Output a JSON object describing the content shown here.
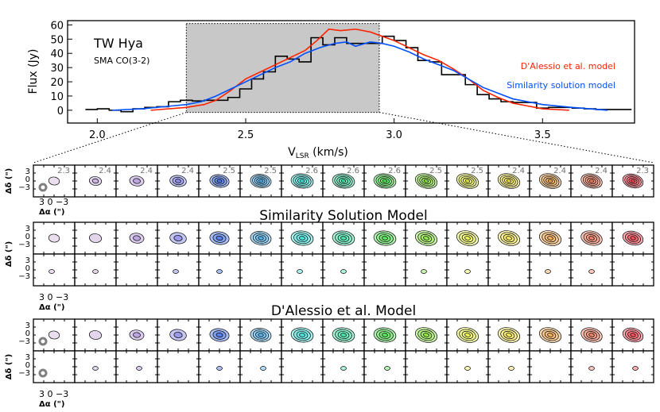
{
  "chart_data": [
    {
      "type": "line",
      "title": "TW Hya",
      "subtitle": "SMA CO(3-2)",
      "xlabel": "V",
      "xlabel_sub": "LSR",
      "xlabel_unit": " (km/s)",
      "ylabel": "Flux (Jy)",
      "xlim": [
        1.9,
        3.81
      ],
      "ylim": [
        -9,
        63
      ],
      "xticks": [
        "2.0",
        "2.5",
        "3.0",
        "3.5"
      ],
      "xtick_values": [
        2.0,
        2.5,
        3.0,
        3.5
      ],
      "yticks": [
        "0",
        "10",
        "20",
        "30",
        "40",
        "50",
        "60"
      ],
      "ytick_values": [
        0,
        10,
        20,
        30,
        40,
        50,
        60
      ],
      "highlight_range": {
        "x": [
          2.3,
          2.95
        ],
        "y": [
          -1.5,
          61
        ],
        "color": "#c8c8c8"
      },
      "legend_placement": "top-right",
      "observed": {
        "style": "step",
        "color": "#000000",
        "x": [
          1.96,
          2.0,
          2.04,
          2.08,
          2.12,
          2.16,
          2.2,
          2.24,
          2.28,
          2.32,
          2.36,
          2.4,
          2.44,
          2.48,
          2.52,
          2.56,
          2.6,
          2.64,
          2.68,
          2.72,
          2.76,
          2.8,
          2.84,
          2.88,
          2.92,
          2.96,
          3.0,
          3.04,
          3.08,
          3.12,
          3.16,
          3.2,
          3.24,
          3.28,
          3.32,
          3.36,
          3.4,
          3.44,
          3.48,
          3.52,
          3.56,
          3.6,
          3.64,
          3.68,
          3.72,
          3.76
        ],
        "y": [
          0.5,
          1,
          0,
          -1,
          1,
          2,
          2.5,
          6,
          7,
          6.5,
          7,
          7,
          9,
          15,
          22,
          27,
          38,
          36,
          34,
          51,
          46,
          51,
          47,
          47,
          47,
          52,
          49,
          44,
          35,
          34,
          25,
          25,
          18,
          11,
          8,
          6,
          5.5,
          5.5,
          1.5,
          2,
          2,
          1.5,
          1,
          0.5,
          0.5,
          0.5
        ]
      },
      "series": [
        {
          "name": "D'Alessio et al. model",
          "color": "#ff2200",
          "x": [
            2.18,
            2.3,
            2.36,
            2.4,
            2.45,
            2.5,
            2.55,
            2.6,
            2.65,
            2.7,
            2.74,
            2.78,
            2.82,
            2.87,
            2.92,
            2.96,
            3.0,
            3.05,
            3.1,
            3.15,
            3.2,
            3.25,
            3.3,
            3.35,
            3.4,
            3.45,
            3.5,
            3.59
          ],
          "y": [
            0,
            2,
            4,
            7,
            14,
            22,
            27,
            32,
            37,
            42,
            49,
            57,
            56,
            57,
            55,
            52,
            49,
            44,
            39,
            35,
            29,
            22,
            14,
            9,
            5,
            3,
            1,
            0
          ]
        },
        {
          "name": "Similarity solution model",
          "color": "#0050ff",
          "x": [
            2.05,
            2.15,
            2.25,
            2.3,
            2.35,
            2.4,
            2.45,
            2.5,
            2.55,
            2.6,
            2.65,
            2.7,
            2.75,
            2.8,
            2.84,
            2.87,
            2.92,
            2.96,
            3.0,
            3.05,
            3.1,
            3.15,
            3.2,
            3.25,
            3.3,
            3.35,
            3.4,
            3.5,
            3.6,
            3.72
          ],
          "y": [
            0,
            1,
            3,
            4,
            6,
            10,
            15,
            20,
            25,
            30,
            34,
            40,
            44,
            47,
            48,
            45,
            48,
            47,
            45,
            41,
            36,
            32,
            28,
            22,
            16,
            12,
            8,
            4,
            2,
            0
          ]
        }
      ]
    }
  ],
  "channel_maps": {
    "channel_labels": [
      "2.3",
      "2.4",
      "2.4",
      "2.4",
      "2.5",
      "2.5",
      "2.6",
      "2.6",
      "2.6",
      "2.5",
      "2.5",
      "2.4",
      "2.4",
      "2.4",
      "2.3"
    ],
    "channel_colors": [
      "#c8b0d8",
      "#b898d0",
      "#a080d0",
      "#7070e0",
      "#3060e0",
      "#40a8e8",
      "#30e0d8",
      "#30e0a0",
      "#40e040",
      "#80e030",
      "#e8f040",
      "#f0e040",
      "#f0a040",
      "#f07050",
      "#f03040"
    ],
    "beam_color": "#808080",
    "section_titles": [
      "Similarity Solution Model",
      "D'Alessio et al. Model"
    ],
    "y_axis_label": "Δδ (\")",
    "x_axis_label": "Δα (\")",
    "axis_ticks": "3 0 −3",
    "y_tick_labels": [
      "3",
      "0",
      "−3"
    ]
  }
}
